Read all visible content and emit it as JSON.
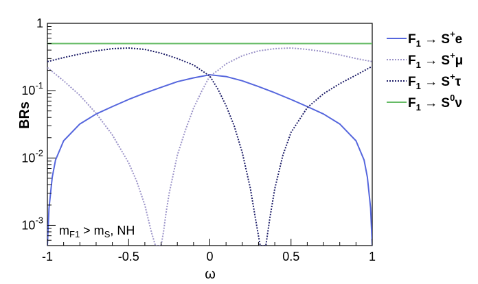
{
  "chart_data": {
    "type": "line",
    "xlabel": "ω",
    "ylabel": "BRs",
    "xlim": [
      -1,
      1
    ],
    "ylim": [
      0.0005,
      1
    ],
    "yscale": "log",
    "x_ticks": [
      {
        "value": -1,
        "label": "-1"
      },
      {
        "value": -0.5,
        "label": "-0.5"
      },
      {
        "value": 0,
        "label": "0"
      },
      {
        "value": 0.5,
        "label": "0.5"
      },
      {
        "value": 1,
        "label": "1"
      }
    ],
    "y_ticks": [
      {
        "value": 0.001,
        "base": "10",
        "exp": "-3"
      },
      {
        "value": 0.01,
        "base": "10",
        "exp": "-2"
      },
      {
        "value": 0.1,
        "base": "10",
        "exp": "-1"
      },
      {
        "value": 1,
        "base": "1",
        "exp": ""
      }
    ],
    "annotation": {
      "m": "m",
      "m_sub": "F1",
      "gt": " > m",
      "s_sub": "S",
      "rest": ", NH"
    },
    "legend_position": "right",
    "series": [
      {
        "key": "e",
        "label": {
          "f": "F",
          "sub": "1",
          "arrow": " → S",
          "sup": "+",
          "lep": "e"
        },
        "color": "#5566dd",
        "style": "solid",
        "points": [
          [
            -1.0,
            0.0005
          ],
          [
            -0.99,
            0.0018
          ],
          [
            -0.97,
            0.0052
          ],
          [
            -0.95,
            0.0093
          ],
          [
            -0.9,
            0.018
          ],
          [
            -0.8,
            0.032
          ],
          [
            -0.7,
            0.045
          ],
          [
            -0.6,
            0.058
          ],
          [
            -0.5,
            0.074
          ],
          [
            -0.4,
            0.092
          ],
          [
            -0.3,
            0.112
          ],
          [
            -0.2,
            0.136
          ],
          [
            -0.1,
            0.155
          ],
          [
            0.0,
            0.172
          ],
          [
            0.1,
            0.162
          ],
          [
            0.2,
            0.14
          ],
          [
            0.3,
            0.115
          ],
          [
            0.4,
            0.093
          ],
          [
            0.5,
            0.074
          ],
          [
            0.6,
            0.058
          ],
          [
            0.7,
            0.045
          ],
          [
            0.8,
            0.032
          ],
          [
            0.9,
            0.018
          ],
          [
            0.95,
            0.0093
          ],
          [
            0.97,
            0.0052
          ],
          [
            0.99,
            0.0018
          ],
          [
            1.0,
            0.0005
          ]
        ]
      },
      {
        "key": "mu",
        "label": {
          "f": "F",
          "sub": "1",
          "arrow": " → S",
          "sup": "+",
          "lep": "μ"
        },
        "color": "#9a92c8",
        "style": "dotted",
        "points": [
          [
            -1.0,
            0.22
          ],
          [
            -0.9,
            0.14
          ],
          [
            -0.8,
            0.085
          ],
          [
            -0.7,
            0.046
          ],
          [
            -0.6,
            0.022
          ],
          [
            -0.5,
            0.0085
          ],
          [
            -0.45,
            0.0045
          ],
          [
            -0.4,
            0.002
          ],
          [
            -0.36,
            0.0008
          ],
          [
            -0.335,
            0.0005
          ],
          [
            -0.3,
            0.0005
          ],
          [
            -0.285,
            0.0008
          ],
          [
            -0.27,
            0.0015
          ],
          [
            -0.25,
            0.003
          ],
          [
            -0.2,
            0.011
          ],
          [
            -0.15,
            0.026
          ],
          [
            -0.1,
            0.055
          ],
          [
            -0.05,
            0.098
          ],
          [
            0.0,
            0.165
          ],
          [
            0.05,
            0.2
          ],
          [
            0.1,
            0.25
          ],
          [
            0.2,
            0.33
          ],
          [
            0.3,
            0.39
          ],
          [
            0.4,
            0.42
          ],
          [
            0.5,
            0.43
          ],
          [
            0.6,
            0.41
          ],
          [
            0.7,
            0.38
          ],
          [
            0.8,
            0.34
          ],
          [
            0.9,
            0.3
          ],
          [
            1.0,
            0.27
          ]
        ]
      },
      {
        "key": "tau",
        "label": {
          "f": "F",
          "sub": "1",
          "arrow": " → S",
          "sup": "+",
          "lep": "τ"
        },
        "color": "#1a1a66",
        "style": "dotted",
        "points": [
          [
            -1.0,
            0.27
          ],
          [
            -0.9,
            0.31
          ],
          [
            -0.8,
            0.35
          ],
          [
            -0.7,
            0.39
          ],
          [
            -0.6,
            0.42
          ],
          [
            -0.5,
            0.43
          ],
          [
            -0.4,
            0.41
          ],
          [
            -0.3,
            0.36
          ],
          [
            -0.2,
            0.3
          ],
          [
            -0.1,
            0.24
          ],
          [
            0.0,
            0.165
          ],
          [
            0.05,
            0.105
          ],
          [
            0.1,
            0.06
          ],
          [
            0.15,
            0.03
          ],
          [
            0.2,
            0.012
          ],
          [
            0.25,
            0.0035
          ],
          [
            0.28,
            0.0013
          ],
          [
            0.31,
            0.0005
          ],
          [
            0.345,
            0.0005
          ],
          [
            0.37,
            0.0013
          ],
          [
            0.4,
            0.0035
          ],
          [
            0.45,
            0.011
          ],
          [
            0.5,
            0.024
          ],
          [
            0.6,
            0.056
          ],
          [
            0.7,
            0.09
          ],
          [
            0.8,
            0.127
          ],
          [
            0.9,
            0.17
          ],
          [
            1.0,
            0.23
          ]
        ]
      },
      {
        "key": "nu",
        "label": {
          "f": "F",
          "sub": "1",
          "arrow": " → S",
          "sup": "0",
          "lep": "ν"
        },
        "color": "#66bb66",
        "style": "solid",
        "points": [
          [
            -1.0,
            0.5
          ],
          [
            1.0,
            0.5
          ]
        ]
      }
    ]
  }
}
